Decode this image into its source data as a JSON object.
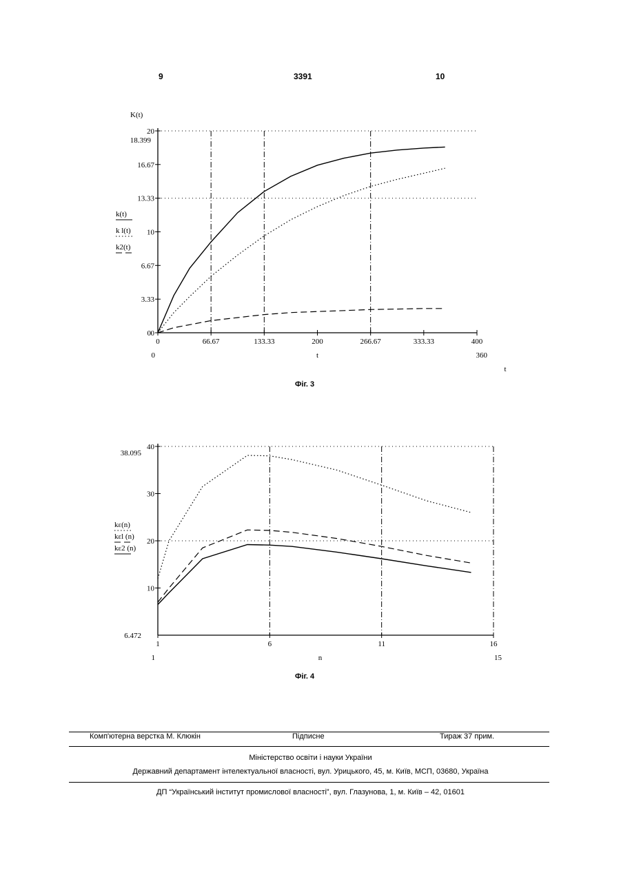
{
  "header": {
    "page_left": "9",
    "doc_number": "3391",
    "page_right": "10"
  },
  "fig3": {
    "caption": "Фіг. 3"
  },
  "fig4": {
    "caption": "Фіг. 4"
  },
  "footer": {
    "layout": "Комп'ютерна верстка М. Клюкін",
    "subscription": "Підписне",
    "circulation": "Тираж 37 прим.",
    "ministry": "Міністерство освіти і науки України",
    "department": "Державний департамент інтелектуальної власності, вул. Урицького, 45, м. Київ, МСП, 03680, Україна",
    "institute": "ДП “Український інститут промислової власності”, вул. Глазунова, 1, м. Київ – 42, 01601"
  },
  "chart_data": [
    {
      "type": "line",
      "ylabel": "K(t)",
      "xlabel": "t",
      "xlim": [
        0,
        400
      ],
      "ylim": [
        0,
        20
      ],
      "x_ticks": [
        "0",
        "66.67",
        "133.33",
        "200",
        "266.67",
        "333.33",
        "400"
      ],
      "y_ticks": [
        "0",
        "3.33",
        "6.67",
        "10",
        "13.33",
        "16.67",
        "20"
      ],
      "range_labels": {
        "y_max": "18.399",
        "y_min": "0",
        "x_min": "0",
        "x_max": "360",
        "x_axis_mark": "t"
      },
      "legend": [
        "k(t)",
        "k l(t)",
        "k2(t)"
      ],
      "x": [
        0,
        20,
        40,
        66.67,
        100,
        133.33,
        166.67,
        200,
        233.33,
        266.67,
        300,
        333.33,
        360
      ],
      "series": [
        {
          "name": "k(t)",
          "style": "solid",
          "values": [
            0,
            3.7,
            6.4,
            9.0,
            11.9,
            14.0,
            15.5,
            16.6,
            17.3,
            17.8,
            18.1,
            18.3,
            18.4
          ]
        },
        {
          "name": "k l(t)",
          "style": "dotted",
          "values": [
            0,
            2.0,
            3.6,
            5.6,
            7.7,
            9.6,
            11.2,
            12.5,
            13.6,
            14.5,
            15.2,
            15.8,
            16.3
          ]
        },
        {
          "name": "k2(t)",
          "style": "dashed",
          "values": [
            0,
            0.5,
            0.8,
            1.2,
            1.5,
            1.8,
            2.0,
            2.1,
            2.2,
            2.3,
            2.35,
            2.4,
            2.4
          ]
        }
      ],
      "vertical_gridlines": [
        66.67,
        133.33,
        266.67
      ],
      "horizontal_gridlines": [
        13.33,
        20
      ]
    },
    {
      "type": "line",
      "xlabel": "n",
      "xlim": [
        1,
        16
      ],
      "ylim": [
        0,
        40
      ],
      "x_ticks": [
        "1",
        "6",
        "11",
        "16"
      ],
      "y_ticks": [
        "10",
        "20",
        "30",
        "40"
      ],
      "range_labels": {
        "y_max": "38.095",
        "y_min": "6.472",
        "x_min": "1",
        "x_max": "15"
      },
      "legend": [
        "kε(n)",
        "kεl (n)",
        "kε2 (n)"
      ],
      "x": [
        1,
        1.5,
        3,
        5,
        6,
        7,
        9,
        11,
        13,
        15
      ],
      "series": [
        {
          "name": "kε(n)",
          "style": "dotted",
          "values": [
            12,
            20,
            31.5,
            38.1,
            38,
            37.2,
            35,
            31.8,
            28.5,
            26
          ]
        },
        {
          "name": "kεl (n)",
          "style": "dashed",
          "values": [
            7,
            10,
            18.5,
            22.3,
            22.2,
            21.8,
            20.5,
            18.8,
            16.9,
            15.3
          ]
        },
        {
          "name": "kε2 (n)",
          "style": "solid",
          "values": [
            6.5,
            9,
            16.2,
            19.2,
            19.1,
            18.8,
            17.6,
            16.2,
            14.7,
            13.3
          ]
        }
      ],
      "vertical_gridlines": [
        6,
        11,
        16
      ],
      "horizontal_gridlines": [
        20,
        40
      ]
    }
  ]
}
